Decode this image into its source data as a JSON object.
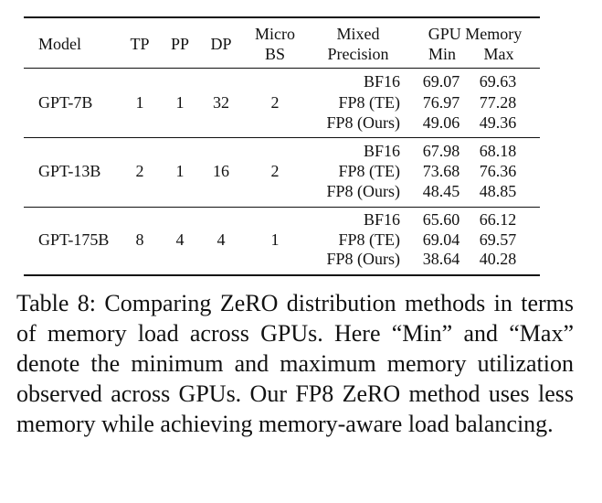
{
  "table": {
    "headers": {
      "model": "Model",
      "tp": "TP",
      "pp": "PP",
      "dp": "DP",
      "micro_bs_line1": "Micro",
      "micro_bs_line2": "BS",
      "mixed_line1": "Mixed",
      "mixed_line2": "Precision",
      "gpu_memory": "GPU Memory",
      "min": "Min",
      "max": "Max"
    },
    "groups": [
      {
        "model": "GPT-7B",
        "tp": "1",
        "pp": "1",
        "dp": "32",
        "micro_bs": "2",
        "rows": [
          {
            "precision": "BF16",
            "min": "69.07",
            "max": "69.63"
          },
          {
            "precision": "FP8 (TE)",
            "min": "76.97",
            "max": "77.28"
          },
          {
            "precision": "FP8 (Ours)",
            "min": "49.06",
            "max": "49.36"
          }
        ]
      },
      {
        "model": "GPT-13B",
        "tp": "2",
        "pp": "1",
        "dp": "16",
        "micro_bs": "2",
        "rows": [
          {
            "precision": "BF16",
            "min": "67.98",
            "max": "68.18"
          },
          {
            "precision": "FP8 (TE)",
            "min": "73.68",
            "max": "76.36"
          },
          {
            "precision": "FP8 (Ours)",
            "min": "48.45",
            "max": "48.85"
          }
        ]
      },
      {
        "model": "GPT-175B",
        "tp": "8",
        "pp": "4",
        "dp": "4",
        "micro_bs": "1",
        "rows": [
          {
            "precision": "BF16",
            "min": "65.60",
            "max": "66.12"
          },
          {
            "precision": "FP8 (TE)",
            "min": "69.04",
            "max": "69.57"
          },
          {
            "precision": "FP8 (Ours)",
            "min": "38.64",
            "max": "40.28"
          }
        ]
      }
    ]
  },
  "caption": {
    "text": "Table 8: Comparing ZeRO distribution methods in terms of memory load across GPUs. Here “Min” and “Max” denote the minimum and maximum memory utilization observed across GPUs. Our FP8 ZeRO method uses less memory while achieving memory-aware load balancing."
  }
}
